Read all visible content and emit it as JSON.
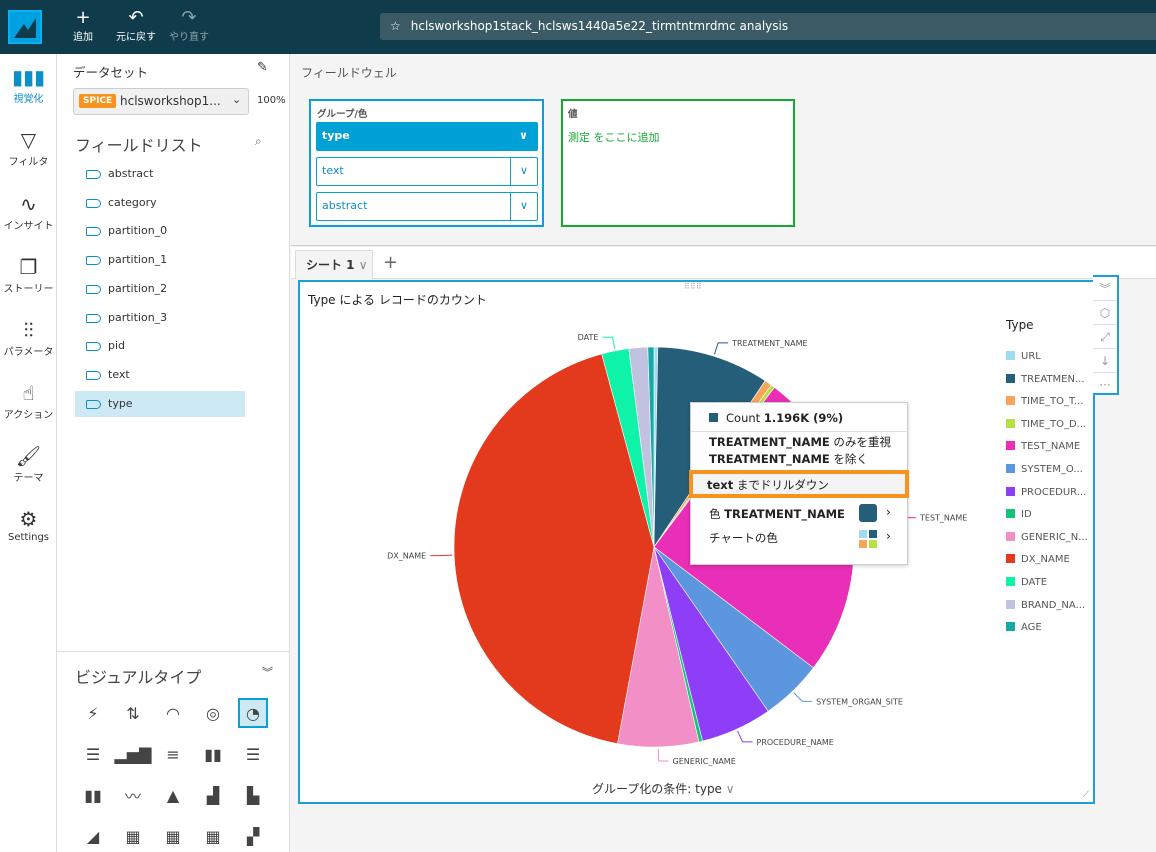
{
  "topbar": {
    "add": "追加",
    "undo": "元に戻す",
    "redo": "やり直す",
    "analysis_title": "hclsworkshop1stack_hclsws1440a5e22_tirmtntmrdmc analysis"
  },
  "nav": [
    {
      "label": "視覚化",
      "icon": "bar-chart-icon"
    },
    {
      "label": "フィルタ",
      "icon": "filter-icon"
    },
    {
      "label": "インサイト",
      "icon": "insight-icon"
    },
    {
      "label": "ストーリー",
      "icon": "story-icon"
    },
    {
      "label": "パラメータ",
      "icon": "sliders-icon"
    },
    {
      "label": "アクション",
      "icon": "pointer-icon"
    },
    {
      "label": "テーマ",
      "icon": "brush-icon"
    },
    {
      "label": "Settings",
      "icon": "gear-icon"
    }
  ],
  "dataset": {
    "heading": "データセット",
    "badge": "SPICE",
    "name": "hclsworkshop1...",
    "percent": "100%"
  },
  "fieldlist": {
    "heading": "フィールドリスト",
    "items": [
      "abstract",
      "category",
      "partition_0",
      "partition_1",
      "partition_2",
      "partition_3",
      "pid",
      "text",
      "type"
    ],
    "selected": "type"
  },
  "visualtypes": {
    "heading": "ビジュアルタイプ",
    "selected": "pie"
  },
  "wells": {
    "heading": "フィールドウェル",
    "group_label": "グループ/色",
    "group_fields": [
      "type",
      "text",
      "abstract"
    ],
    "value_label": "値",
    "value_placeholder": "測定 をここに追加"
  },
  "sheet": {
    "tab": "シート 1",
    "add": "+"
  },
  "visual": {
    "title": "Type による レコードのカウント",
    "group_by": "グループ化の条件: type"
  },
  "context_menu": {
    "count_label": "Count",
    "count_value": "1.196K (9%)",
    "focus_field": "TREATMENT_NAME",
    "focus_suffix": " のみを重視",
    "exclude_field": "TREATMENT_NAME",
    "exclude_suffix": " を除く",
    "drill_field": "text",
    "drill_suffix": " までドリルダウン",
    "color_prefix": "色 ",
    "color_field": "TREATMENT_NAME",
    "chart_colors": "チャートの色",
    "highlight_color": "#f7931e"
  },
  "chart_data": {
    "type": "pie",
    "legend_title": "Type",
    "legend_position": "right",
    "slices": [
      {
        "name": "URL",
        "legend": "URL",
        "value": 40,
        "color": "#9fdcef"
      },
      {
        "name": "TREATMENT_NAME",
        "legend": "TREATMEN...",
        "value": 1196,
        "color": "#255e78",
        "label": true
      },
      {
        "name": "TIME_TO_TREATMENT",
        "legend": "TIME_TO_T...",
        "value": 80,
        "color": "#f8a55c"
      },
      {
        "name": "TIME_TO_DIAGNOSIS",
        "legend": "TIME_TO_D...",
        "value": 40,
        "color": "#b7e043"
      },
      {
        "name": "TEST_NAME",
        "legend": "TEST_NAME",
        "value": 3300,
        "color": "#e92fb7",
        "label": true
      },
      {
        "name": "SYSTEM_ORGAN_SITE",
        "legend": "SYSTEM_O...",
        "value": 660,
        "color": "#5b96de",
        "label": true
      },
      {
        "name": "PROCEDURE_NAME",
        "legend": "PROCEDUR...",
        "value": 760,
        "color": "#8e3ef7",
        "label": true
      },
      {
        "name": "ID",
        "legend": "ID",
        "value": 40,
        "color": "#14c47a"
      },
      {
        "name": "GENERIC_NAME",
        "legend": "GENERIC_N...",
        "value": 860,
        "color": "#f18fc6",
        "label": true
      },
      {
        "name": "DX_NAME",
        "legend": "DX_NAME",
        "value": 5650,
        "color": "#e3391d",
        "label": true
      },
      {
        "name": "DATE",
        "legend": "DATE",
        "value": 290,
        "color": "#0ef3a8",
        "label": true
      },
      {
        "name": "BRAND_NAME",
        "legend": "BRAND_NA...",
        "value": 200,
        "color": "#c1c1e0"
      },
      {
        "name": "AGE",
        "legend": "AGE",
        "value": 65,
        "color": "#17a9a5"
      }
    ]
  }
}
